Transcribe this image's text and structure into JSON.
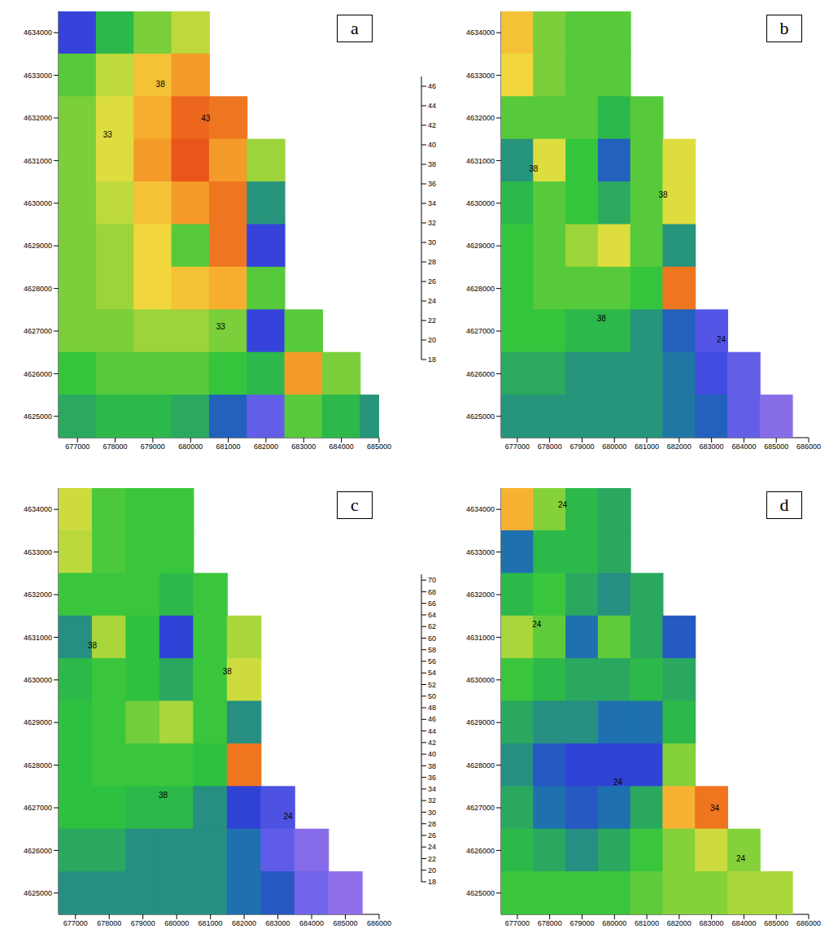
{
  "chart_data": [
    {
      "type": "heatmap",
      "title": "a",
      "x": [
        677000,
        678000,
        679000,
        680000,
        681000,
        682000,
        683000,
        684000,
        685000
      ],
      "y": [
        4634000,
        4633000,
        4632000,
        4631000,
        4630000,
        4629000,
        4628000,
        4627000,
        4626000,
        4625000
      ],
      "cells": [
        [
          24,
          30,
          33,
          35,
          null,
          null,
          null,
          null,
          null
        ],
        [
          32,
          35,
          38,
          40,
          null,
          null,
          null,
          null,
          null
        ],
        [
          33,
          36,
          39,
          43,
          42,
          null,
          null,
          null,
          null
        ],
        [
          33,
          36,
          40,
          44,
          40,
          34,
          null,
          null,
          null
        ],
        [
          33,
          35,
          38,
          40,
          42,
          28,
          null,
          null,
          null
        ],
        [
          33,
          34,
          37,
          32,
          42,
          24,
          null,
          null,
          null
        ],
        [
          33,
          34,
          37,
          38,
          39,
          32,
          null,
          null,
          null
        ],
        [
          33,
          33,
          34,
          34,
          33,
          24,
          32,
          null,
          null
        ],
        [
          31,
          32,
          32,
          32,
          31,
          30,
          40,
          33,
          null
        ],
        [
          29,
          30,
          30,
          29,
          26,
          21,
          32,
          30,
          28
        ]
      ],
      "xlim": [
        676500,
        685000
      ],
      "ylim": [
        4624500,
        4634500
      ],
      "xticks": [
        677000,
        678000,
        679000,
        680000,
        681000,
        682000,
        683000,
        684000,
        685000
      ],
      "yticks": [
        4625000,
        4626000,
        4627000,
        4628000,
        4629000,
        4630000,
        4631000,
        4632000,
        4633000,
        4634000
      ],
      "contour_labels": [
        {
          "x": 677800,
          "y": 4631600,
          "text": "33"
        },
        {
          "x": 679200,
          "y": 4632800,
          "text": "38"
        },
        {
          "x": 680400,
          "y": 4632000,
          "text": "43"
        },
        {
          "x": 680800,
          "y": 4627100,
          "text": "33"
        }
      ]
    },
    {
      "type": "heatmap",
      "title": "b",
      "x": [
        677000,
        678000,
        679000,
        680000,
        681000,
        682000,
        683000,
        684000,
        685000,
        686000
      ],
      "y": [
        4634000,
        4633000,
        4632000,
        4631000,
        4630000,
        4629000,
        4628000,
        4627000,
        4626000,
        4625000
      ],
      "cells": [
        [
          38,
          33,
          32,
          32,
          null,
          null,
          null,
          null,
          null,
          null
        ],
        [
          37,
          33,
          32,
          32,
          null,
          null,
          null,
          null,
          null,
          null
        ],
        [
          32,
          32,
          32,
          30,
          32,
          null,
          null,
          null,
          null,
          null
        ],
        [
          28,
          36,
          31,
          26,
          32,
          36,
          null,
          null,
          null,
          null
        ],
        [
          30,
          32,
          31,
          29,
          32,
          36,
          null,
          null,
          null,
          null
        ],
        [
          31,
          32,
          34,
          36,
          32,
          28,
          null,
          null,
          null,
          null
        ],
        [
          31,
          32,
          32,
          32,
          31,
          42,
          null,
          null,
          null,
          null
        ],
        [
          31,
          31,
          30,
          30,
          28,
          26,
          22,
          null,
          null,
          null
        ],
        [
          29,
          29,
          28,
          28,
          28,
          27,
          23,
          21,
          null,
          null
        ],
        [
          28,
          28,
          28,
          28,
          28,
          27,
          26,
          21,
          19,
          null
        ]
      ],
      "xlim": [
        676500,
        686000
      ],
      "ylim": [
        4624500,
        4634500
      ],
      "xticks": [
        677000,
        678000,
        679000,
        680000,
        681000,
        682000,
        683000,
        684000,
        685000,
        686000
      ],
      "yticks": [
        4625000,
        4626000,
        4627000,
        4628000,
        4629000,
        4630000,
        4631000,
        4632000,
        4633000,
        4634000
      ],
      "contour_labels": [
        {
          "x": 677500,
          "y": 4630800,
          "text": "38"
        },
        {
          "x": 681500,
          "y": 4630200,
          "text": "38"
        },
        {
          "x": 679600,
          "y": 4627300,
          "text": "38"
        },
        {
          "x": 683300,
          "y": 4626800,
          "text": "24"
        }
      ]
    },
    {
      "type": "heatmap",
      "title": "c",
      "x": [
        677000,
        678000,
        679000,
        680000,
        681000,
        682000,
        683000,
        684000,
        685000,
        686000
      ],
      "y": [
        4634000,
        4633000,
        4632000,
        4631000,
        4630000,
        4629000,
        4628000,
        4627000,
        4626000,
        4625000
      ],
      "cells": [
        [
          50,
          43,
          42,
          42,
          null,
          null,
          null,
          null,
          null,
          null
        ],
        [
          49,
          43,
          42,
          42,
          null,
          null,
          null,
          null,
          null,
          null
        ],
        [
          42,
          42,
          42,
          40,
          42,
          null,
          null,
          null,
          null,
          null
        ],
        [
          36,
          48,
          41,
          30,
          42,
          48,
          null,
          null,
          null,
          null
        ],
        [
          40,
          42,
          41,
          38,
          42,
          50,
          null,
          null,
          null,
          null
        ],
        [
          41,
          42,
          45,
          48,
          42,
          36,
          null,
          null,
          null,
          null
        ],
        [
          41,
          42,
          42,
          42,
          41,
          62,
          null,
          null,
          null,
          null
        ],
        [
          41,
          41,
          40,
          40,
          36,
          30,
          26,
          null,
          null,
          null
        ],
        [
          38,
          38,
          36,
          36,
          36,
          34,
          24,
          20,
          null,
          null
        ],
        [
          36,
          36,
          36,
          36,
          36,
          34,
          32,
          22,
          19,
          null
        ]
      ],
      "xlim": [
        676500,
        686000
      ],
      "ylim": [
        4624500,
        4634500
      ],
      "xticks": [
        677000,
        678000,
        679000,
        680000,
        681000,
        682000,
        683000,
        684000,
        685000,
        686000
      ],
      "yticks": [
        4625000,
        4626000,
        4627000,
        4628000,
        4629000,
        4630000,
        4631000,
        4632000,
        4633000,
        4634000
      ],
      "contour_labels": [
        {
          "x": 677500,
          "y": 4630800,
          "text": "38"
        },
        {
          "x": 681500,
          "y": 4630200,
          "text": "38"
        },
        {
          "x": 679600,
          "y": 4627300,
          "text": "38"
        },
        {
          "x": 683300,
          "y": 4626800,
          "text": "24"
        }
      ]
    },
    {
      "type": "heatmap",
      "title": "d",
      "x": [
        677000,
        678000,
        679000,
        680000,
        681000,
        682000,
        683000,
        684000,
        685000,
        686000
      ],
      "y": [
        4634000,
        4633000,
        4632000,
        4631000,
        4630000,
        4629000,
        4628000,
        4627000,
        4626000,
        4625000
      ],
      "cells": [
        [
          56,
          46,
          40,
          38,
          null,
          null,
          null,
          null,
          null,
          null
        ],
        [
          34,
          40,
          40,
          38,
          null,
          null,
          null,
          null,
          null,
          null
        ],
        [
          40,
          42,
          38,
          36,
          38,
          null,
          null,
          null,
          null,
          null
        ],
        [
          48,
          44,
          34,
          44,
          38,
          32,
          null,
          null,
          null,
          null
        ],
        [
          42,
          40,
          38,
          38,
          40,
          38,
          null,
          null,
          null,
          null
        ],
        [
          38,
          36,
          36,
          34,
          34,
          40,
          null,
          null,
          null,
          null
        ],
        [
          36,
          32,
          30,
          30,
          30,
          46,
          null,
          null,
          null,
          null
        ],
        [
          38,
          34,
          32,
          34,
          38,
          56,
          62,
          null,
          null,
          null
        ],
        [
          40,
          38,
          36,
          38,
          42,
          46,
          50,
          46,
          null,
          null
        ],
        [
          42,
          42,
          42,
          42,
          44,
          46,
          46,
          48,
          48,
          null
        ]
      ],
      "xlim": [
        676500,
        686000
      ],
      "ylim": [
        4624500,
        4634500
      ],
      "xticks": [
        677000,
        678000,
        679000,
        680000,
        681000,
        682000,
        683000,
        684000,
        685000,
        686000
      ],
      "yticks": [
        4625000,
        4626000,
        4627000,
        4628000,
        4629000,
        4630000,
        4631000,
        4632000,
        4633000,
        4634000
      ],
      "contour_labels": [
        {
          "x": 678400,
          "y": 4634100,
          "text": "24"
        },
        {
          "x": 677600,
          "y": 4631300,
          "text": "24"
        },
        {
          "x": 680100,
          "y": 4627600,
          "text": "24"
        },
        {
          "x": 683100,
          "y": 4627000,
          "text": "34"
        },
        {
          "x": 683900,
          "y": 4625800,
          "text": "24"
        }
      ]
    }
  ],
  "colorbars": [
    {
      "range": [
        18,
        47
      ],
      "ticks": [
        18,
        20,
        22,
        24,
        26,
        28,
        30,
        32,
        34,
        36,
        38,
        40,
        42,
        44,
        46
      ]
    },
    {
      "range": [
        18,
        71
      ],
      "ticks": [
        18,
        20,
        22,
        24,
        26,
        28,
        30,
        32,
        34,
        36,
        38,
        40,
        42,
        44,
        46,
        48,
        50,
        52,
        54,
        56,
        58,
        60,
        62,
        64,
        66,
        68,
        70
      ]
    }
  ]
}
